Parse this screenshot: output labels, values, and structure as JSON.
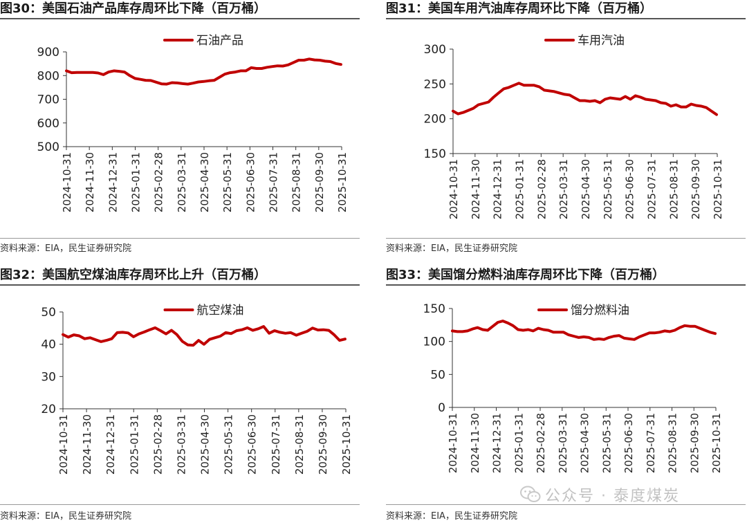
{
  "panels": [
    {
      "title": "图30：美国石油产品库存周环比下降（百万桶）",
      "source": "资料来源：EIA，民生证券研究院"
    },
    {
      "title": "图31：美国车用汽油库存周环比下降（百万桶）",
      "source": "资料来源：EIA，民生证券研究院"
    },
    {
      "title": "图32：美国航空煤油库存周环比上升（百万桶）",
      "source": "资料来源：EIA，民生证券研究院"
    },
    {
      "title": "图33：美国馏分燃料油库存周环比下降（百万桶）",
      "source": "资料来源：EIA，民生证券研究院"
    }
  ],
  "watermark": {
    "text": "公众号 · 泰度煤炭",
    "icon": "wechat-icon"
  },
  "chart_data": [
    {
      "type": "line",
      "legend_position": "top-center",
      "color": "#C00000",
      "x_tick_labels": [
        "2024-10-31",
        "2024-11-30",
        "2024-12-31",
        "2025-01-31",
        "2025-02-28",
        "2025-03-31",
        "2025-04-30",
        "2025-05-31",
        "2025-06-30",
        "2025-07-31",
        "2025-08-31",
        "2025-09-30",
        "2025-10-31"
      ],
      "x_range": [
        "2024-10-31",
        "2025-10-31"
      ],
      "ylim": [
        500,
        900
      ],
      "yticks": [
        500,
        600,
        700,
        800,
        900
      ],
      "series": [
        {
          "name": "石油产品",
          "points": [
            [
              "2024-10-31",
              820
            ],
            [
              "2024-11-07",
              812
            ],
            [
              "2024-11-14",
              813
            ],
            [
              "2024-11-21",
              813
            ],
            [
              "2024-11-28",
              813
            ],
            [
              "2024-12-05",
              813
            ],
            [
              "2024-12-12",
              811
            ],
            [
              "2024-12-19",
              804
            ],
            [
              "2024-12-26",
              815
            ],
            [
              "2025-01-02",
              820
            ],
            [
              "2025-01-09",
              818
            ],
            [
              "2025-01-16",
              815
            ],
            [
              "2025-01-23",
              800
            ],
            [
              "2025-01-30",
              788
            ],
            [
              "2025-02-06",
              784
            ],
            [
              "2025-02-13",
              780
            ],
            [
              "2025-02-20",
              779
            ],
            [
              "2025-02-27",
              772
            ],
            [
              "2025-03-06",
              765
            ],
            [
              "2025-03-13",
              764
            ],
            [
              "2025-03-20",
              770
            ],
            [
              "2025-03-27",
              769
            ],
            [
              "2025-04-03",
              766
            ],
            [
              "2025-04-10",
              764
            ],
            [
              "2025-04-17",
              768
            ],
            [
              "2025-04-24",
              773
            ],
            [
              "2025-05-01",
              775
            ],
            [
              "2025-05-08",
              778
            ],
            [
              "2025-05-15",
              780
            ],
            [
              "2025-05-22",
              793
            ],
            [
              "2025-05-29",
              806
            ],
            [
              "2025-06-05",
              812
            ],
            [
              "2025-06-12",
              815
            ],
            [
              "2025-06-19",
              820
            ],
            [
              "2025-06-26",
              820
            ],
            [
              "2025-07-03",
              833
            ],
            [
              "2025-07-10",
              830
            ],
            [
              "2025-07-17",
              830
            ],
            [
              "2025-07-24",
              835
            ],
            [
              "2025-07-31",
              838
            ],
            [
              "2025-08-07",
              841
            ],
            [
              "2025-08-14",
              840
            ],
            [
              "2025-08-21",
              845
            ],
            [
              "2025-08-28",
              855
            ],
            [
              "2025-09-04",
              865
            ],
            [
              "2025-09-11",
              865
            ],
            [
              "2025-09-18",
              870
            ],
            [
              "2025-09-25",
              866
            ],
            [
              "2025-10-02",
              865
            ],
            [
              "2025-10-09",
              861
            ],
            [
              "2025-10-16",
              859
            ],
            [
              "2025-10-23",
              851
            ],
            [
              "2025-10-30",
              847
            ]
          ]
        }
      ]
    },
    {
      "type": "line",
      "legend_position": "top-center",
      "color": "#C00000",
      "x_tick_labels": [
        "2024-10-31",
        "2024-11-30",
        "2024-12-31",
        "2025-01-31",
        "2025-02-28",
        "2025-03-31",
        "2025-04-30",
        "2025-05-31",
        "2025-06-30",
        "2025-07-31",
        "2025-08-31",
        "2025-09-30",
        "2025-10-31"
      ],
      "x_range": [
        "2024-10-31",
        "2025-10-31"
      ],
      "ylim": [
        150,
        300
      ],
      "yticks": [
        150,
        200,
        250,
        300
      ],
      "series": [
        {
          "name": "车用汽油",
          "points": [
            [
              "2024-10-31",
              211
            ],
            [
              "2024-11-07",
              207
            ],
            [
              "2024-11-14",
              209
            ],
            [
              "2024-11-21",
              212
            ],
            [
              "2024-11-28",
              215
            ],
            [
              "2024-12-05",
              220
            ],
            [
              "2024-12-12",
              222
            ],
            [
              "2024-12-19",
              224
            ],
            [
              "2024-12-26",
              231
            ],
            [
              "2025-01-02",
              237
            ],
            [
              "2025-01-09",
              243
            ],
            [
              "2025-01-16",
              245
            ],
            [
              "2025-01-23",
              248
            ],
            [
              "2025-01-30",
              251
            ],
            [
              "2025-02-06",
              248
            ],
            [
              "2025-02-13",
              248
            ],
            [
              "2025-02-20",
              248
            ],
            [
              "2025-02-27",
              246
            ],
            [
              "2025-03-06",
              241
            ],
            [
              "2025-03-13",
              240
            ],
            [
              "2025-03-20",
              239
            ],
            [
              "2025-03-27",
              237
            ],
            [
              "2025-04-03",
              235
            ],
            [
              "2025-04-10",
              234
            ],
            [
              "2025-04-17",
              230
            ],
            [
              "2025-04-24",
              226
            ],
            [
              "2025-05-01",
              226
            ],
            [
              "2025-05-08",
              225
            ],
            [
              "2025-05-15",
              226
            ],
            [
              "2025-05-22",
              223
            ],
            [
              "2025-05-29",
              228
            ],
            [
              "2025-06-05",
              230
            ],
            [
              "2025-06-12",
              229
            ],
            [
              "2025-06-19",
              228
            ],
            [
              "2025-06-26",
              232
            ],
            [
              "2025-07-03",
              228
            ],
            [
              "2025-07-10",
              233
            ],
            [
              "2025-07-17",
              231
            ],
            [
              "2025-07-24",
              228
            ],
            [
              "2025-07-31",
              227
            ],
            [
              "2025-08-07",
              226
            ],
            [
              "2025-08-14",
              223
            ],
            [
              "2025-08-21",
              222
            ],
            [
              "2025-08-28",
              218
            ],
            [
              "2025-09-04",
              220
            ],
            [
              "2025-09-11",
              217
            ],
            [
              "2025-09-18",
              217
            ],
            [
              "2025-09-25",
              221
            ],
            [
              "2025-10-02",
              219
            ],
            [
              "2025-10-09",
              218
            ],
            [
              "2025-10-16",
              216
            ],
            [
              "2025-10-23",
              211
            ],
            [
              "2025-10-30",
              206
            ]
          ]
        }
      ]
    },
    {
      "type": "line",
      "legend_position": "top-center",
      "color": "#C00000",
      "x_tick_labels": [
        "2024-10-31",
        "2024-11-30",
        "2024-12-31",
        "2025-01-31",
        "2025-02-28",
        "2025-03-31",
        "2025-04-30",
        "2025-05-31",
        "2025-06-30",
        "2025-07-31",
        "2025-08-31",
        "2025-09-30",
        "2025-10-31"
      ],
      "x_range": [
        "2024-10-31",
        "2025-10-31"
      ],
      "ylim": [
        20,
        50
      ],
      "yticks": [
        20,
        30,
        40,
        50
      ],
      "series": [
        {
          "name": "航空煤油",
          "points": [
            [
              "2024-10-31",
              43.0
            ],
            [
              "2024-11-07",
              42.2
            ],
            [
              "2024-11-14",
              42.9
            ],
            [
              "2024-11-21",
              42.6
            ],
            [
              "2024-11-28",
              41.7
            ],
            [
              "2024-12-05",
              42.0
            ],
            [
              "2024-12-12",
              41.4
            ],
            [
              "2024-12-19",
              40.8
            ],
            [
              "2024-12-26",
              41.2
            ],
            [
              "2025-01-02",
              41.7
            ],
            [
              "2025-01-09",
              43.6
            ],
            [
              "2025-01-16",
              43.7
            ],
            [
              "2025-01-23",
              43.5
            ],
            [
              "2025-01-30",
              42.3
            ],
            [
              "2025-02-06",
              43.2
            ],
            [
              "2025-02-13",
              43.8
            ],
            [
              "2025-02-20",
              44.5
            ],
            [
              "2025-02-27",
              45.1
            ],
            [
              "2025-03-06",
              44.2
            ],
            [
              "2025-03-13",
              43.2
            ],
            [
              "2025-03-20",
              44.3
            ],
            [
              "2025-03-27",
              43.0
            ],
            [
              "2025-04-03",
              40.9
            ],
            [
              "2025-04-10",
              39.8
            ],
            [
              "2025-04-17",
              39.7
            ],
            [
              "2025-04-24",
              41.2
            ],
            [
              "2025-05-01",
              40.0
            ],
            [
              "2025-05-08",
              41.5
            ],
            [
              "2025-05-15",
              42.0
            ],
            [
              "2025-05-22",
              42.5
            ],
            [
              "2025-05-29",
              43.6
            ],
            [
              "2025-06-05",
              43.3
            ],
            [
              "2025-06-12",
              44.2
            ],
            [
              "2025-06-19",
              44.5
            ],
            [
              "2025-06-26",
              45.1
            ],
            [
              "2025-07-03",
              44.3
            ],
            [
              "2025-07-10",
              44.8
            ],
            [
              "2025-07-17",
              45.5
            ],
            [
              "2025-07-24",
              43.4
            ],
            [
              "2025-07-31",
              44.2
            ],
            [
              "2025-08-07",
              43.7
            ],
            [
              "2025-08-14",
              43.4
            ],
            [
              "2025-08-21",
              43.6
            ],
            [
              "2025-08-28",
              42.8
            ],
            [
              "2025-09-04",
              43.4
            ],
            [
              "2025-09-11",
              44.0
            ],
            [
              "2025-09-18",
              45.0
            ],
            [
              "2025-09-25",
              44.4
            ],
            [
              "2025-10-02",
              44.5
            ],
            [
              "2025-10-09",
              44.3
            ],
            [
              "2025-10-16",
              42.9
            ],
            [
              "2025-10-23",
              41.2
            ],
            [
              "2025-10-30",
              41.6
            ]
          ]
        }
      ]
    },
    {
      "type": "line",
      "legend_position": "top-center",
      "color": "#C00000",
      "x_tick_labels": [
        "2024-10-31",
        "2024-11-30",
        "2024-12-31",
        "2025-01-31",
        "2025-02-28",
        "2025-03-31",
        "2025-04-30",
        "2025-05-31",
        "2025-06-30",
        "2025-07-31",
        "2025-08-31",
        "2025-09-30",
        "2025-10-31"
      ],
      "x_range": [
        "2024-10-31",
        "2025-10-31"
      ],
      "ylim": [
        0,
        150
      ],
      "yticks": [
        0,
        50,
        100,
        150
      ],
      "series": [
        {
          "name": "馏分燃料油",
          "points": [
            [
              "2024-10-31",
              116
            ],
            [
              "2024-11-07",
              115
            ],
            [
              "2024-11-14",
              115
            ],
            [
              "2024-11-21",
              116
            ],
            [
              "2024-11-28",
              119
            ],
            [
              "2024-12-05",
              121
            ],
            [
              "2024-12-12",
              118
            ],
            [
              "2024-12-19",
              117
            ],
            [
              "2024-12-26",
              123
            ],
            [
              "2025-01-02",
              129
            ],
            [
              "2025-01-09",
              131
            ],
            [
              "2025-01-16",
              128
            ],
            [
              "2025-01-23",
              124
            ],
            [
              "2025-01-30",
              118
            ],
            [
              "2025-02-06",
              117
            ],
            [
              "2025-02-13",
              118
            ],
            [
              "2025-02-20",
              116
            ],
            [
              "2025-02-27",
              120
            ],
            [
              "2025-03-06",
              118
            ],
            [
              "2025-03-13",
              117
            ],
            [
              "2025-03-20",
              114
            ],
            [
              "2025-03-27",
              114
            ],
            [
              "2025-04-03",
              114
            ],
            [
              "2025-04-10",
              110
            ],
            [
              "2025-04-17",
              108
            ],
            [
              "2025-04-24",
              106
            ],
            [
              "2025-05-01",
              107
            ],
            [
              "2025-05-08",
              106
            ],
            [
              "2025-05-15",
              103
            ],
            [
              "2025-05-22",
              104
            ],
            [
              "2025-05-29",
              103
            ],
            [
              "2025-06-05",
              106
            ],
            [
              "2025-06-12",
              108
            ],
            [
              "2025-06-19",
              109
            ],
            [
              "2025-06-26",
              105
            ],
            [
              "2025-07-03",
              104
            ],
            [
              "2025-07-10",
              103
            ],
            [
              "2025-07-17",
              107
            ],
            [
              "2025-07-24",
              110
            ],
            [
              "2025-07-31",
              113
            ],
            [
              "2025-08-07",
              113
            ],
            [
              "2025-08-14",
              114
            ],
            [
              "2025-08-21",
              116
            ],
            [
              "2025-08-28",
              115
            ],
            [
              "2025-09-04",
              117
            ],
            [
              "2025-09-11",
              121
            ],
            [
              "2025-09-18",
              124
            ],
            [
              "2025-09-25",
              123
            ],
            [
              "2025-10-02",
              123
            ],
            [
              "2025-10-09",
              120
            ],
            [
              "2025-10-16",
              117
            ],
            [
              "2025-10-23",
              114
            ],
            [
              "2025-10-30",
              112
            ]
          ]
        }
      ]
    }
  ]
}
